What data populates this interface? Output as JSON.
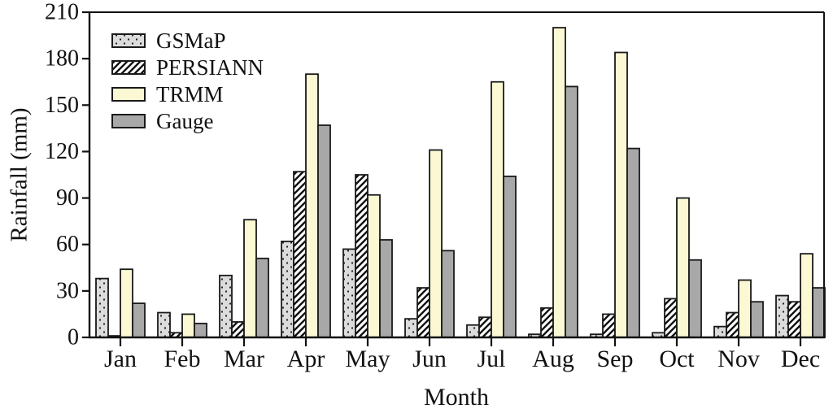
{
  "chart_data": {
    "type": "bar",
    "title": "",
    "xlabel": "Month",
    "ylabel": "Rainfall (mm)",
    "categories": [
      "Jan",
      "Feb",
      "Mar",
      "Apr",
      "May",
      "Jun",
      "Jul",
      "Aug",
      "Sep",
      "Oct",
      "Nov",
      "Dec"
    ],
    "series": [
      {
        "name": "GSMaP",
        "pattern": "dots",
        "fill": "#dcdcdc",
        "values": [
          38,
          16,
          40,
          62,
          57,
          12,
          8,
          2,
          2,
          3,
          7,
          27
        ]
      },
      {
        "name": "PERSIANN",
        "pattern": "hatch",
        "fill": "#ffffff",
        "values": [
          1,
          3,
          10,
          107,
          105,
          32,
          13,
          19,
          15,
          25,
          16,
          23
        ]
      },
      {
        "name": "TRMM",
        "pattern": "solid",
        "fill": "#faf9d3",
        "values": [
          44,
          15,
          76,
          170,
          92,
          121,
          165,
          200,
          184,
          90,
          37,
          54
        ]
      },
      {
        "name": "Gauge",
        "pattern": "solid",
        "fill": "#a8a8a8",
        "values": [
          22,
          9,
          51,
          137,
          63,
          56,
          104,
          162,
          122,
          50,
          23,
          32
        ]
      }
    ],
    "ylim": [
      0,
      210
    ],
    "yticks": [
      0,
      30,
      60,
      90,
      120,
      150,
      180,
      210
    ],
    "grid": false,
    "legend_position": "upper-left-inside",
    "axis_color": "#111111",
    "bar_edge_color": "#1a1a1a"
  }
}
